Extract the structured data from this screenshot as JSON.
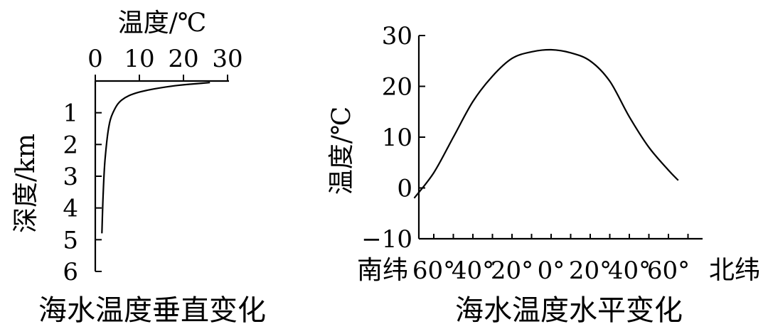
{
  "chart_data": [
    {
      "type": "line",
      "title": "海水温度垂直变化",
      "xlabel": "温度/℃",
      "ylabel": "深度/km",
      "x_axis_position": "top",
      "y_axis_inverted": true,
      "xlim": [
        0,
        30
      ],
      "ylim": [
        0,
        6
      ],
      "x_ticks": [
        0,
        10,
        20,
        30
      ],
      "x_tick_labels": [
        "0",
        "10",
        "20",
        "30"
      ],
      "y_ticks": [
        1,
        2,
        3,
        4,
        5,
        6
      ],
      "y_tick_labels": [
        "1",
        "2",
        "3",
        "4",
        "5",
        "6"
      ],
      "series": [
        {
          "points": [
            {
              "temp": 26,
              "depth": 0.05
            },
            {
              "temp": 18,
              "depth": 0.15
            },
            {
              "temp": 10,
              "depth": 0.35
            },
            {
              "temp": 6,
              "depth": 0.6
            },
            {
              "temp": 4,
              "depth": 1.0
            },
            {
              "temp": 3,
              "depth": 1.5
            },
            {
              "temp": 2.2,
              "depth": 2.5
            },
            {
              "temp": 1.8,
              "depth": 3.5
            },
            {
              "temp": 1.5,
              "depth": 4.8
            }
          ]
        }
      ]
    },
    {
      "type": "line",
      "title": "海水温度水平变化",
      "ylabel": "温度/℃",
      "ylim": [
        -10,
        30
      ],
      "y_ticks": [
        -10,
        0,
        10,
        20,
        30
      ],
      "y_tick_labels": [
        "−10",
        "0",
        "10",
        "20",
        "30"
      ],
      "x_ticks": [
        -60,
        -40,
        -20,
        0,
        20,
        40,
        60
      ],
      "x_tick_labels": [
        "60°",
        "40°",
        "20°",
        "0°",
        "20°",
        "40°",
        "60°"
      ],
      "south_label": "南纬",
      "north_label": "北纬",
      "series": [
        {
          "points": [
            {
              "lat": -70,
              "temp": -2
            },
            {
              "lat": -60,
              "temp": 3
            },
            {
              "lat": -50,
              "temp": 10
            },
            {
              "lat": -40,
              "temp": 17
            },
            {
              "lat": -30,
              "temp": 22
            },
            {
              "lat": -20,
              "temp": 25.5
            },
            {
              "lat": -10,
              "temp": 26.8
            },
            {
              "lat": 0,
              "temp": 27.2
            },
            {
              "lat": 10,
              "temp": 26.6
            },
            {
              "lat": 20,
              "temp": 25
            },
            {
              "lat": 30,
              "temp": 21
            },
            {
              "lat": 40,
              "temp": 14
            },
            {
              "lat": 50,
              "temp": 8
            },
            {
              "lat": 60,
              "temp": 3.5
            },
            {
              "lat": 65,
              "temp": 1.5
            }
          ]
        }
      ]
    }
  ]
}
